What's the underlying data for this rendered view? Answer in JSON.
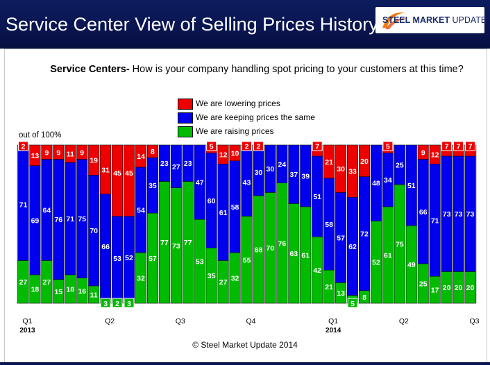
{
  "header": {
    "title": "Service Center View of Selling Prices History"
  },
  "logo": {
    "text_bold": "STEEL MARKET",
    "text_light": "UPDATE"
  },
  "question": {
    "bold": "Service Centers-",
    "text": " How is your company handling spot pricing to your customers at this time?"
  },
  "legend": [
    {
      "label": "We are lowering prices",
      "color": "#ee0000"
    },
    {
      "label": "We are keeping prices the same",
      "color": "#0000ee"
    },
    {
      "label": "We are raising prices",
      "color": "#00bb00"
    }
  ],
  "out_of": "out of 100%",
  "copyright": "© Steel Market Update 2014",
  "chart_data": {
    "type": "bar",
    "stacked": true,
    "ylim": [
      0,
      100
    ],
    "categories": [
      "1",
      "2",
      "3",
      "4",
      "5",
      "6",
      "7",
      "8",
      "9",
      "10",
      "11",
      "12",
      "13",
      "14",
      "15",
      "16",
      "17",
      "18",
      "19",
      "20",
      "21",
      "22",
      "23",
      "24",
      "25",
      "26",
      "27",
      "28",
      "29",
      "30",
      "31",
      "32",
      "33",
      "34",
      "35",
      "36",
      "37",
      "38",
      "39"
    ],
    "x_tick_labels": [
      {
        "label": "Q1",
        "year": "2013",
        "index": 0
      },
      {
        "label": "Q2",
        "index": 7
      },
      {
        "label": "Q3",
        "index": 13
      },
      {
        "label": "Q4",
        "index": 19
      },
      {
        "label": "Q1",
        "year": "2014",
        "index": 26
      },
      {
        "label": "Q2",
        "index": 32
      },
      {
        "label": "Q3",
        "index": 38
      }
    ],
    "series": [
      {
        "name": "We are raising prices",
        "color": "#00bb00",
        "values": [
          27,
          18,
          27,
          15,
          18,
          16,
          11,
          3,
          2,
          3,
          32,
          57,
          77,
          73,
          77,
          53,
          35,
          27,
          32,
          55,
          68,
          70,
          76,
          63,
          61,
          42,
          21,
          13,
          5,
          8,
          52,
          61,
          75,
          49,
          25,
          17,
          20,
          20,
          20
        ]
      },
      {
        "name": "We are keeping prices the same",
        "color": "#0000ee",
        "values": [
          71,
          69,
          64,
          76,
          71,
          75,
          70,
          66,
          53,
          52,
          54,
          35,
          23,
          27,
          23,
          47,
          60,
          61,
          58,
          43,
          30,
          30,
          24,
          37,
          39,
          51,
          58,
          57,
          62,
          72,
          48,
          34,
          25,
          51,
          66,
          71,
          73,
          73,
          73
        ]
      },
      {
        "name": "We are lowering prices",
        "color": "#ee0000",
        "values": [
          2,
          13,
          9,
          9,
          11,
          9,
          19,
          31,
          45,
          45,
          14,
          8,
          0,
          0,
          0,
          0,
          5,
          12,
          10,
          2,
          2,
          0,
          0,
          0,
          0,
          7,
          21,
          30,
          33,
          20,
          0,
          5,
          0,
          0,
          9,
          12,
          7,
          7,
          7
        ]
      }
    ]
  }
}
